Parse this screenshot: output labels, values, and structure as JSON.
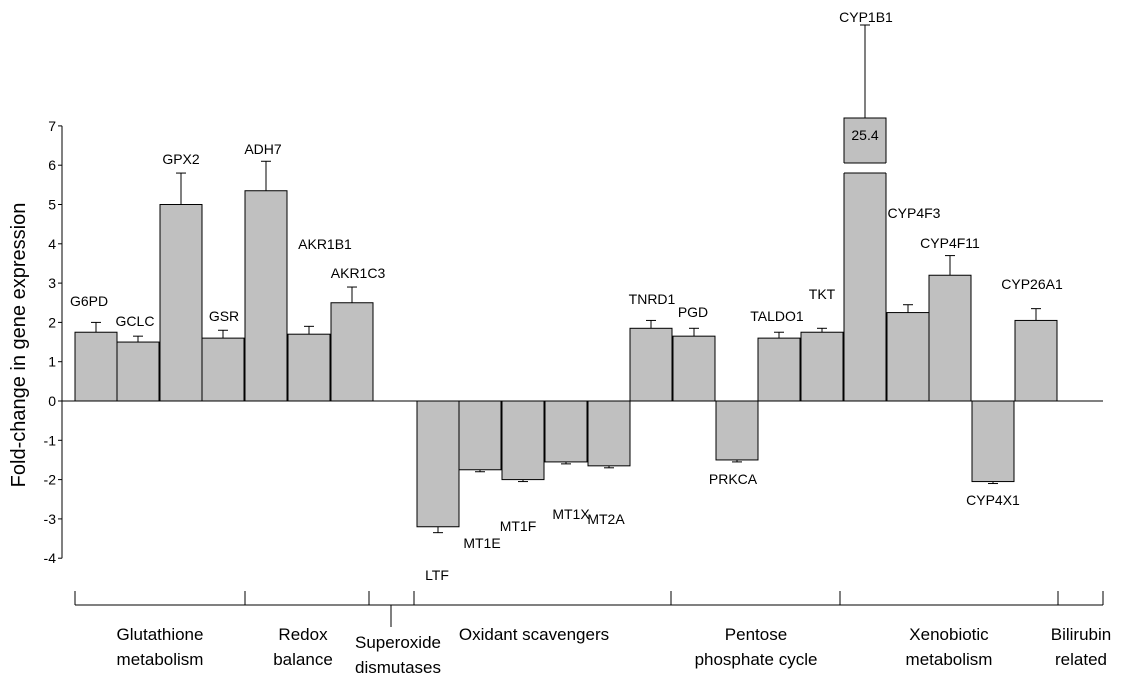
{
  "chart_data": {
    "type": "bar",
    "ylabel": "Fold-change in gene expression",
    "xlabel": "",
    "ylim": [
      -4,
      7
    ],
    "yticks": [
      -4,
      -3,
      -2,
      -1,
      0,
      1,
      2,
      3,
      4,
      5,
      6,
      7
    ],
    "y_axis_break": true,
    "colors": {
      "bar_fill": "#c0c0c0",
      "bar_stroke": "#000000"
    },
    "categories": [
      "G6PD",
      "GCLC",
      "GPX2",
      "GSR",
      "ADH7",
      "AKR1B1",
      "AKR1C3",
      "LTF",
      "MT1E",
      "MT1F",
      "MT1X",
      "MT2A",
      "TNRD1",
      "PGD",
      "PRKCA",
      "TALDO1",
      "TKT",
      "CYP1B1",
      "CYP4F3",
      "CYP4F11",
      "CYP4X1",
      "CYP26A1"
    ],
    "values": [
      1.75,
      1.5,
      5.0,
      1.6,
      5.35,
      1.7,
      2.5,
      -3.2,
      -1.75,
      -2.0,
      -1.55,
      -1.65,
      1.85,
      1.65,
      -1.5,
      1.6,
      1.75,
      25.4,
      2.25,
      3.2,
      -2.05,
      2.05
    ],
    "errors": [
      0.25,
      0.15,
      0.8,
      0.2,
      0.75,
      0.2,
      0.4,
      0.15,
      0.05,
      0.05,
      0.05,
      0.05,
      0.2,
      0.2,
      0.05,
      0.15,
      0.1,
      8.5,
      0.2,
      0.5,
      0.05,
      0.3
    ],
    "value_labels": [
      "",
      "",
      "",
      "",
      "",
      "",
      "",
      "",
      "",
      "",
      "",
      "",
      "",
      "",
      "",
      "",
      "",
      "25.4",
      "",
      "",
      "",
      ""
    ],
    "groups": [
      {
        "label": [
          "Glutathione",
          "metabolism"
        ]
      },
      {
        "label": [
          "Redox",
          "balance"
        ]
      },
      {
        "label": [
          "Superoxide",
          "dismutases"
        ]
      },
      {
        "label": [
          "Oxidant scavengers"
        ]
      },
      {
        "label": [
          "Pentose",
          "phosphate cycle"
        ]
      },
      {
        "label": [
          "Xenobiotic",
          "metabolism"
        ]
      },
      {
        "label": [
          "Bilirubin",
          "related"
        ]
      }
    ]
  }
}
